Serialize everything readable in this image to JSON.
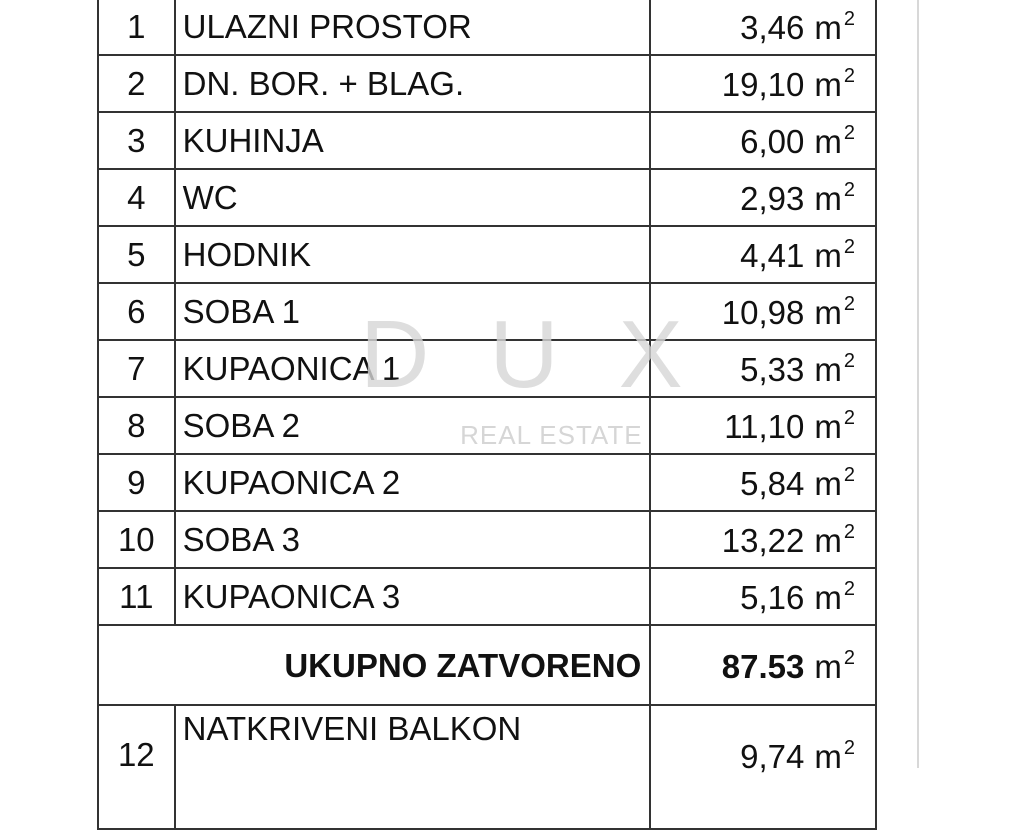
{
  "rows": [
    {
      "no": "1",
      "name": "ULAZNI PROSTOR",
      "area": "3,46",
      "unit": "m",
      "sup": "2"
    },
    {
      "no": "2",
      "name": "DN. BOR. + BLAG.",
      "area": "19,10",
      "unit": "m",
      "sup": "2"
    },
    {
      "no": "3",
      "name": "KUHINJA",
      "area": "6,00",
      "unit": "m",
      "sup": "2"
    },
    {
      "no": "4",
      "name": "WC",
      "area": "2,93",
      "unit": "m",
      "sup": "2"
    },
    {
      "no": "5",
      "name": "HODNIK",
      "area": "4,41",
      "unit": "m",
      "sup": "2"
    },
    {
      "no": "6",
      "name": "SOBA 1",
      "area": "10,98",
      "unit": "m",
      "sup": "2"
    },
    {
      "no": "7",
      "name": "KUPAONICA 1",
      "area": "5,33",
      "unit": "m",
      "sup": "2"
    },
    {
      "no": "8",
      "name": "SOBA 2",
      "area": "11,10",
      "unit": "m",
      "sup": "2"
    },
    {
      "no": "9",
      "name": "KUPAONICA 2",
      "area": "5,84",
      "unit": "m",
      "sup": "2"
    },
    {
      "no": "10",
      "name": "SOBA 3",
      "area": "13,22",
      "unit": "m",
      "sup": "2"
    },
    {
      "no": "11",
      "name": "KUPAONICA 3",
      "area": "5,16",
      "unit": "m",
      "sup": "2"
    }
  ],
  "total": {
    "label": "UKUPNO ZATVORENO",
    "area": "87.53",
    "unit": "m",
    "sup": "2"
  },
  "partial_row": {
    "no": "12",
    "name": "NATKRIVENI BALKON",
    "area": "9,74",
    "unit": "m",
    "sup": "2"
  },
  "watermark": {
    "logo": "DUX",
    "sub": "REAL ESTATE"
  }
}
